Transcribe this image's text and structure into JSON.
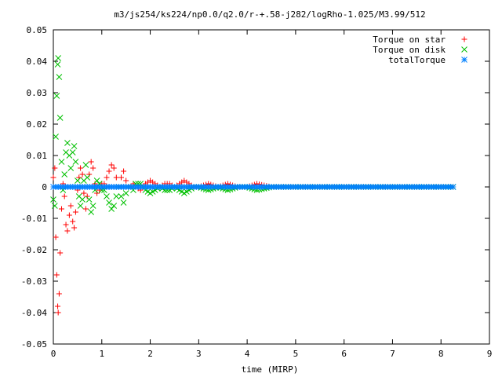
{
  "chart_data": {
    "type": "scatter",
    "title": "m3/js254/ks224/np0.0/q2.0/r-+.58-j282/logRho-1.025/M3.99/512",
    "xlabel": "time (MIRP)",
    "ylabel": "",
    "xlim": [
      0,
      9
    ],
    "ylim": [
      -0.05,
      0.05
    ],
    "x_ticks": [
      "0",
      "1",
      "2",
      "3",
      "4",
      "5",
      "6",
      "7",
      "8",
      "9"
    ],
    "y_ticks": [
      "0.05",
      "0.04",
      "0.03",
      "0.02",
      "0.01",
      "0",
      "-0.01",
      "-0.02",
      "-0.03",
      "-0.04",
      "-0.05"
    ],
    "legend_position": "top-right",
    "x_range_of_data": [
      0,
      8.25
    ],
    "series": [
      {
        "name": "Torque on star",
        "color": "#ff0000",
        "marker": "plus",
        "points": [
          [
            0.0,
            0.003
          ],
          [
            0.03,
            0.006
          ],
          [
            0.05,
            -0.016
          ],
          [
            0.07,
            -0.028
          ],
          [
            0.09,
            -0.038
          ],
          [
            0.1,
            -0.04
          ],
          [
            0.12,
            -0.034
          ],
          [
            0.14,
            -0.021
          ],
          [
            0.17,
            -0.007
          ],
          [
            0.2,
            0.001
          ],
          [
            0.23,
            -0.003
          ],
          [
            0.26,
            -0.012
          ],
          [
            0.29,
            -0.014
          ],
          [
            0.33,
            -0.009
          ],
          [
            0.36,
            -0.006
          ],
          [
            0.4,
            -0.011
          ],
          [
            0.43,
            -0.013
          ],
          [
            0.46,
            -0.008
          ],
          [
            0.5,
            -0.001
          ],
          [
            0.53,
            0.003
          ],
          [
            0.56,
            0.006
          ],
          [
            0.6,
            0.004
          ],
          [
            0.63,
            -0.002
          ],
          [
            0.67,
            -0.007
          ],
          [
            0.7,
            -0.003
          ],
          [
            0.74,
            0.004
          ],
          [
            0.78,
            0.008
          ],
          [
            0.82,
            0.006
          ],
          [
            0.86,
            0.001
          ],
          [
            0.9,
            -0.002
          ],
          [
            0.95,
            -0.001
          ],
          [
            1.0,
            0.001
          ],
          [
            1.05,
            0.001
          ],
          [
            1.1,
            0.003
          ],
          [
            1.15,
            0.005
          ],
          [
            1.2,
            0.007
          ],
          [
            1.25,
            0.006
          ],
          [
            1.3,
            0.003
          ],
          [
            1.35,
            0.0
          ],
          [
            1.4,
            0.003
          ],
          [
            1.45,
            0.005
          ],
          [
            1.5,
            0.002
          ],
          [
            1.55,
            0.0
          ],
          [
            1.6,
            0.0
          ],
          [
            1.65,
            0.001
          ],
          [
            1.7,
            0.0
          ],
          [
            1.8,
            -0.001
          ],
          [
            1.9,
            0.001
          ],
          [
            2.0,
            0.002
          ],
          [
            2.1,
            0.001
          ],
          [
            2.2,
            0.0
          ],
          [
            2.3,
            0.001
          ],
          [
            2.4,
            0.001
          ],
          [
            2.5,
            0.0
          ],
          [
            2.6,
            0.001
          ],
          [
            2.7,
            0.002
          ],
          [
            2.8,
            0.001
          ],
          [
            2.9,
            0.0
          ],
          [
            3.0,
            0.0
          ],
          [
            3.2,
            0.001
          ],
          [
            3.4,
            0.0
          ],
          [
            3.6,
            0.001
          ],
          [
            3.8,
            0.0
          ],
          [
            4.0,
            0.0
          ],
          [
            4.2,
            0.001
          ],
          [
            4.5,
            0.0
          ],
          [
            5.0,
            0.0
          ],
          [
            5.5,
            0.0
          ],
          [
            6.0,
            0.0
          ],
          [
            6.5,
            0.0
          ],
          [
            7.0,
            0.0
          ],
          [
            7.5,
            0.0
          ],
          [
            8.0,
            0.0
          ],
          [
            8.25,
            0.0
          ]
        ]
      },
      {
        "name": "Torque on disk",
        "color": "#00c000",
        "marker": "cross",
        "points": [
          [
            0.0,
            -0.004
          ],
          [
            0.03,
            -0.006
          ],
          [
            0.05,
            0.016
          ],
          [
            0.07,
            0.029
          ],
          [
            0.09,
            0.039
          ],
          [
            0.1,
            0.041
          ],
          [
            0.12,
            0.035
          ],
          [
            0.14,
            0.022
          ],
          [
            0.17,
            0.008
          ],
          [
            0.2,
            -0.001
          ],
          [
            0.23,
            0.004
          ],
          [
            0.26,
            0.011
          ],
          [
            0.29,
            0.014
          ],
          [
            0.33,
            0.01
          ],
          [
            0.36,
            0.006
          ],
          [
            0.4,
            0.011
          ],
          [
            0.43,
            0.013
          ],
          [
            0.46,
            0.008
          ],
          [
            0.5,
            0.002
          ],
          [
            0.53,
            -0.003
          ],
          [
            0.56,
            -0.006
          ],
          [
            0.6,
            -0.004
          ],
          [
            0.63,
            0.002
          ],
          [
            0.67,
            0.007
          ],
          [
            0.7,
            0.003
          ],
          [
            0.74,
            -0.004
          ],
          [
            0.78,
            -0.008
          ],
          [
            0.82,
            -0.006
          ],
          [
            0.86,
            -0.001
          ],
          [
            0.9,
            0.002
          ],
          [
            0.95,
            0.001
          ],
          [
            1.0,
            -0.001
          ],
          [
            1.05,
            -0.001
          ],
          [
            1.1,
            -0.003
          ],
          [
            1.15,
            -0.005
          ],
          [
            1.2,
            -0.007
          ],
          [
            1.25,
            -0.006
          ],
          [
            1.3,
            -0.003
          ],
          [
            1.35,
            0.0
          ],
          [
            1.4,
            -0.003
          ],
          [
            1.45,
            -0.005
          ],
          [
            1.5,
            -0.002
          ],
          [
            1.55,
            0.0
          ],
          [
            1.6,
            0.0
          ],
          [
            1.65,
            -0.001
          ],
          [
            1.7,
            0.001
          ],
          [
            1.8,
            0.001
          ],
          [
            1.9,
            -0.001
          ],
          [
            2.0,
            -0.002
          ],
          [
            2.1,
            -0.001
          ],
          [
            2.2,
            0.0
          ],
          [
            2.3,
            -0.001
          ],
          [
            2.4,
            -0.001
          ],
          [
            2.5,
            0.0
          ],
          [
            2.6,
            -0.001
          ],
          [
            2.7,
            -0.002
          ],
          [
            2.8,
            -0.001
          ],
          [
            2.9,
            0.0
          ],
          [
            3.0,
            0.0
          ],
          [
            3.2,
            -0.001
          ],
          [
            3.4,
            0.0
          ],
          [
            3.6,
            -0.001
          ],
          [
            3.8,
            0.0
          ],
          [
            4.0,
            0.0
          ],
          [
            4.2,
            -0.001
          ],
          [
            4.5,
            0.0
          ],
          [
            5.0,
            0.0
          ],
          [
            5.5,
            0.0
          ],
          [
            6.0,
            0.0
          ],
          [
            6.5,
            0.0
          ],
          [
            7.0,
            0.0
          ],
          [
            7.5,
            0.0
          ],
          [
            8.0,
            0.0
          ],
          [
            8.25,
            0.0
          ]
        ]
      },
      {
        "name": "totalTorque",
        "color": "#0080ff",
        "marker": "star",
        "points": [
          [
            0.0,
            0.0
          ],
          [
            0.05,
            0.0
          ],
          [
            0.1,
            0.0
          ],
          [
            0.15,
            0.0
          ],
          [
            0.2,
            0.0
          ],
          [
            0.3,
            0.0
          ],
          [
            0.4,
            0.0
          ],
          [
            0.5,
            0.0
          ],
          [
            0.6,
            0.0
          ],
          [
            0.7,
            0.0
          ],
          [
            0.8,
            0.0
          ],
          [
            0.9,
            0.0
          ],
          [
            1.0,
            0.0
          ],
          [
            1.1,
            0.0
          ],
          [
            1.2,
            0.0
          ],
          [
            1.3,
            0.0
          ],
          [
            1.4,
            0.0
          ],
          [
            1.5,
            0.0
          ],
          [
            1.6,
            0.0
          ],
          [
            1.8,
            0.0
          ],
          [
            2.0,
            0.0
          ],
          [
            2.2,
            0.0
          ],
          [
            2.4,
            0.0
          ],
          [
            2.6,
            0.0
          ],
          [
            2.8,
            0.0
          ],
          [
            3.0,
            0.0
          ],
          [
            3.25,
            0.0
          ],
          [
            3.5,
            0.0
          ],
          [
            3.75,
            0.0
          ],
          [
            4.0,
            0.0
          ],
          [
            4.25,
            0.0
          ],
          [
            4.5,
            0.0
          ],
          [
            4.75,
            0.0
          ],
          [
            5.0,
            0.0
          ],
          [
            5.25,
            0.0
          ],
          [
            5.5,
            0.0
          ],
          [
            5.75,
            0.0
          ],
          [
            6.0,
            0.0
          ],
          [
            6.25,
            0.0
          ],
          [
            6.5,
            0.0
          ],
          [
            6.75,
            0.0
          ],
          [
            7.0,
            0.0
          ],
          [
            7.25,
            0.0
          ],
          [
            7.5,
            0.0
          ],
          [
            7.75,
            0.0
          ],
          [
            8.0,
            0.0
          ],
          [
            8.25,
            0.0
          ]
        ]
      }
    ]
  }
}
